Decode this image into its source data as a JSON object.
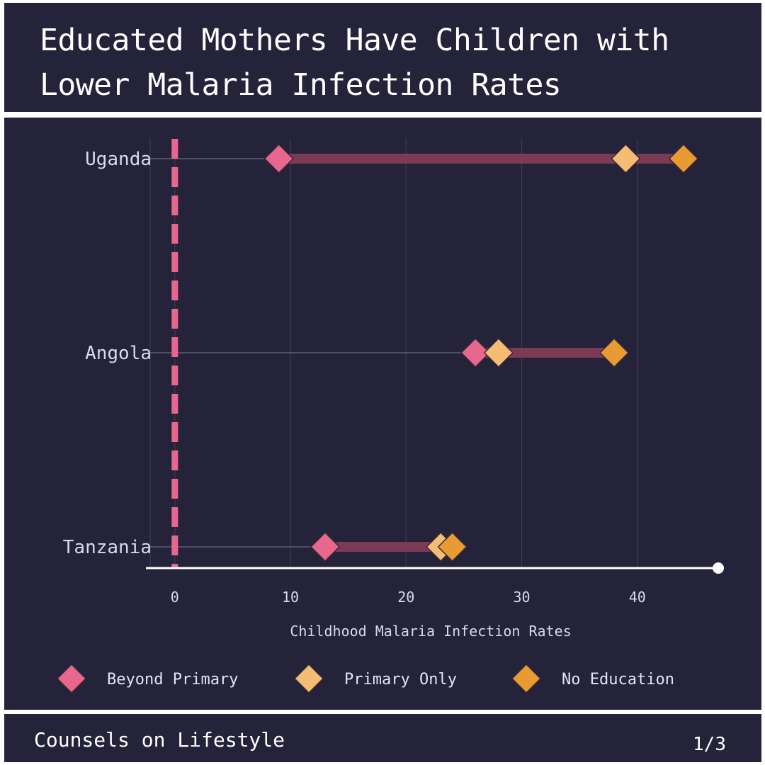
{
  "header": {
    "title": "Educated Mothers Have Children with Lower Malaria Infection Rates"
  },
  "chart_data": {
    "type": "dot-range",
    "categories": [
      "Uganda",
      "Angola",
      "Tanzania"
    ],
    "series": [
      {
        "name": "Beyond Primary",
        "color": "#e8678e",
        "values": [
          9,
          26,
          13
        ]
      },
      {
        "name": "Primary Only",
        "color": "#f5bd73",
        "values": [
          39,
          28,
          23
        ]
      },
      {
        "name": "No Education",
        "color": "#e89a33",
        "values": [
          44,
          38,
          24
        ]
      }
    ],
    "xlabel": "Childhood Malaria Infection Rates",
    "xticks": [
      0,
      10,
      20,
      30,
      40
    ],
    "xlim": [
      -2.5,
      47
    ],
    "reference_line": {
      "x": 0,
      "style": "dashed",
      "color": "#e8678e"
    },
    "range_bar_color": "#7c3a55",
    "grid": true,
    "legend": "bottom"
  },
  "footer": {
    "brand": "Counsels on Lifestyle",
    "page_indicator": "1/3"
  }
}
